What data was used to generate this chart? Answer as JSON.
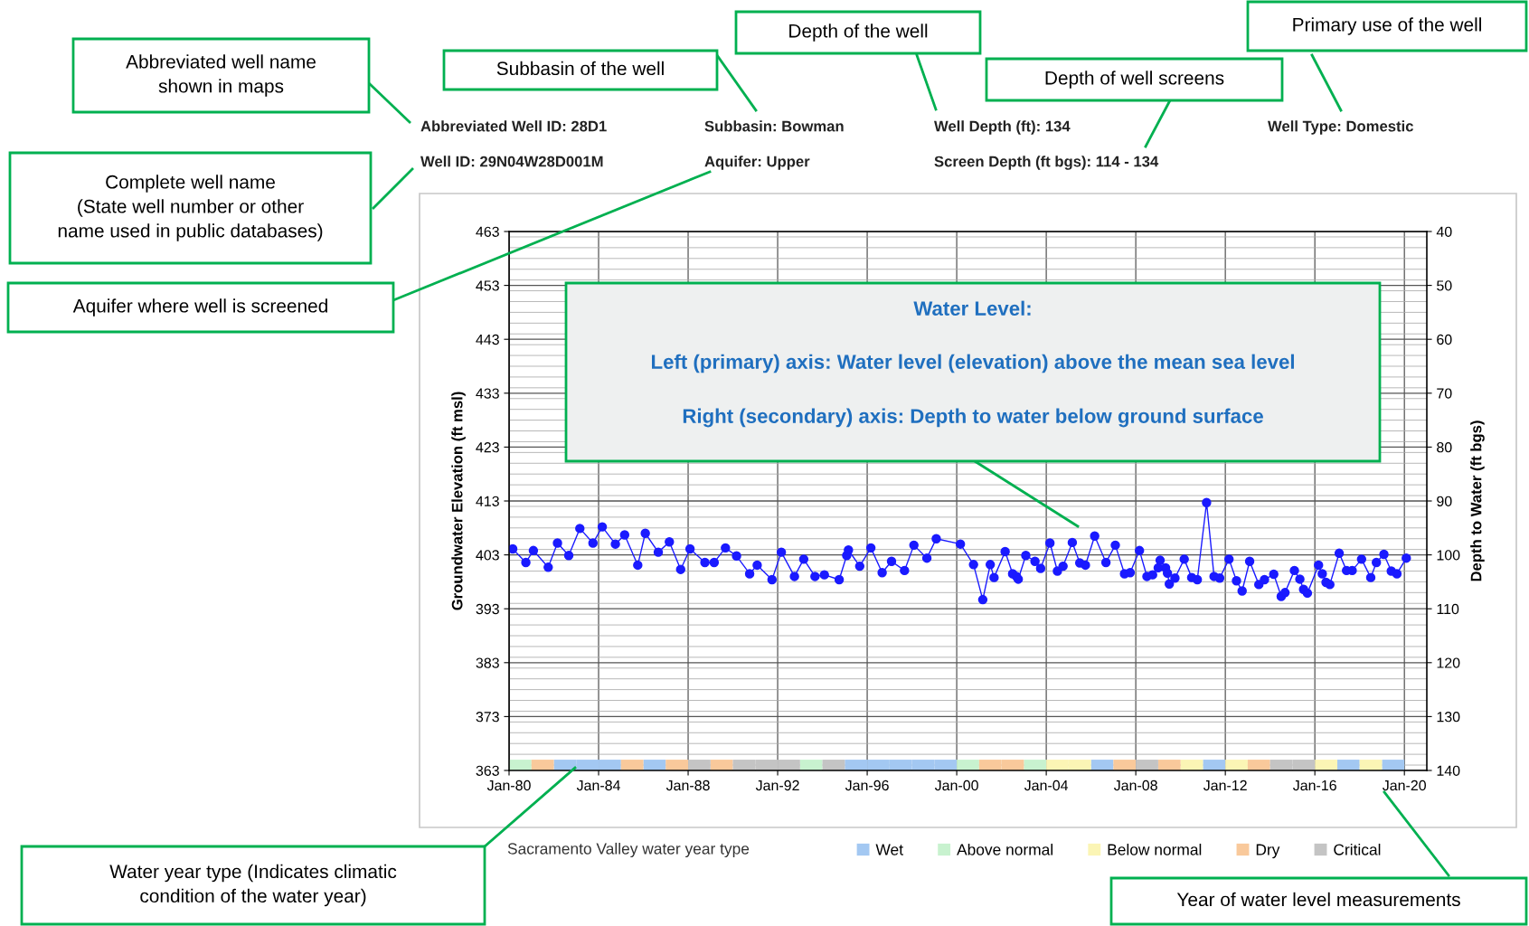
{
  "chart_data": {
    "type": "line",
    "ylabel": "Groundwater Elevation (ft msl)",
    "y2label": "Depth to Water (ft bgs)",
    "legend_title": "Sacramento Valley water year type",
    "xlim": [
      "1980-01",
      "2021-01"
    ],
    "xticks": [
      {
        "value": "1980-01",
        "label": "Jan-80"
      },
      {
        "value": "1984-01",
        "label": "Jan-84"
      },
      {
        "value": "1988-01",
        "label": "Jan-88"
      },
      {
        "value": "1992-01",
        "label": "Jan-92"
      },
      {
        "value": "1996-01",
        "label": "Jan-96"
      },
      {
        "value": "2000-01",
        "label": "Jan-00"
      },
      {
        "value": "2004-01",
        "label": "Jan-04"
      },
      {
        "value": "2008-01",
        "label": "Jan-08"
      },
      {
        "value": "2012-01",
        "label": "Jan-12"
      },
      {
        "value": "2016-01",
        "label": "Jan-16"
      },
      {
        "value": "2020-01",
        "label": "Jan-20"
      }
    ],
    "ylim": [
      363,
      463
    ],
    "yticks": [
      363,
      373,
      383,
      393,
      403,
      413,
      423,
      433,
      443,
      453,
      463
    ],
    "y2lim": [
      140,
      40
    ],
    "y2ticks": [
      40,
      50,
      60,
      70,
      80,
      90,
      100,
      110,
      120,
      130,
      140
    ],
    "grid": true,
    "legend": "bottom",
    "marker": "circle",
    "line_style": "solid",
    "series": [
      {
        "color": "#1a1aff",
        "x": [
          "1980-03",
          "1980-10",
          "1981-02",
          "1981-10",
          "1982-03",
          "1982-09",
          "1983-03",
          "1983-10",
          "1984-03",
          "1984-10",
          "1985-03",
          "1985-10",
          "1986-02",
          "1986-09",
          "1987-03",
          "1987-09",
          "1988-02",
          "1988-10",
          "1989-03",
          "1989-09",
          "1990-03",
          "1990-10",
          "1991-02",
          "1991-10",
          "1992-03",
          "1992-10",
          "1993-03",
          "1993-09",
          "1994-02",
          "1994-10",
          "1995-02",
          "1995-03",
          "1995-09",
          "1996-03",
          "1996-09",
          "1997-02",
          "1997-09",
          "1998-02",
          "1998-09",
          "1999-02",
          "2000-03",
          "2000-10",
          "2001-03",
          "2001-07",
          "2001-09",
          "2002-03",
          "2002-07",
          "2002-09",
          "2002-10",
          "2003-02",
          "2003-07",
          "2003-10",
          "2004-03",
          "2004-07",
          "2004-10",
          "2005-03",
          "2005-07",
          "2005-10",
          "2006-03",
          "2006-09",
          "2007-02",
          "2007-07",
          "2007-10",
          "2008-03",
          "2008-07",
          "2008-10",
          "2009-01",
          "2009-02",
          "2009-05",
          "2009-06",
          "2009-07",
          "2009-10",
          "2010-03",
          "2010-07",
          "2010-10",
          "2011-03",
          "2011-07",
          "2011-10",
          "2012-03",
          "2012-07",
          "2012-10",
          "2013-02",
          "2013-07",
          "2013-10",
          "2014-03",
          "2014-07",
          "2014-09",
          "2015-02",
          "2015-05",
          "2015-07",
          "2015-09",
          "2016-03",
          "2016-05",
          "2016-07",
          "2016-09",
          "2017-02",
          "2017-06",
          "2017-09",
          "2018-02",
          "2018-07",
          "2018-10",
          "2019-02",
          "2019-06",
          "2019-09",
          "2020-02"
        ],
        "values": [
          404.1,
          401.6,
          403.8,
          400.7,
          405.2,
          402.9,
          407.9,
          405.2,
          408.2,
          405.0,
          406.7,
          401.1,
          407.0,
          403.5,
          405.4,
          400.3,
          404.1,
          401.6,
          401.6,
          404.3,
          402.8,
          399.5,
          401.1,
          398.4,
          403.5,
          399.0,
          402.2,
          399.0,
          399.3,
          398.4,
          402.9,
          403.9,
          400.9,
          404.3,
          399.7,
          401.8,
          400.1,
          404.8,
          402.4,
          406.0,
          405.0,
          401.2,
          394.7,
          401.2,
          398.8,
          403.6,
          399.5,
          399.0,
          398.5,
          402.9,
          401.8,
          400.5,
          405.2,
          400.0,
          400.9,
          405.3,
          401.5,
          401.1,
          406.5,
          401.6,
          404.8,
          399.5,
          399.7,
          403.8,
          399.0,
          399.3,
          400.6,
          402.0,
          400.6,
          399.6,
          397.6,
          398.7,
          402.2,
          398.8,
          398.4,
          412.7,
          399.0,
          398.7,
          402.2,
          398.2,
          396.3,
          401.8,
          397.5,
          398.4,
          399.4,
          395.3,
          396.0,
          400.1,
          398.5,
          396.6,
          395.9,
          401.1,
          399.5,
          397.9,
          397.5,
          403.3,
          400.1,
          400.1,
          402.2,
          398.8,
          401.6,
          403.1,
          400.0,
          399.5,
          402.4
        ]
      },
      {
        "type": "bar",
        "name": "Wet",
        "color": "#a3c8f2",
        "x": [
          "1982-07-02",
          "1983-07-02",
          "1984-07-02",
          "1986-07-02",
          "1995-07-02",
          "1996-07-02",
          "1997-07-02",
          "1998-07-02",
          "1999-07-02",
          "2006-07-02",
          "2011-07-02",
          "2017-07-02",
          "2019-07-02"
        ],
        "values": [
          2,
          2,
          2,
          2,
          2,
          2,
          2,
          2,
          2,
          2,
          2,
          2,
          2
        ],
        "base": [
          363,
          363,
          363,
          363,
          363,
          363,
          363,
          363,
          363,
          363,
          363,
          363,
          363
        ]
      },
      {
        "type": "bar",
        "name": "Above normal",
        "color": "#c8f2cf",
        "x": [
          "1980-07-02",
          "1993-07-02",
          "2000-07-02",
          "2003-07-02"
        ],
        "values": [
          2,
          2,
          2,
          2
        ],
        "base": [
          363,
          363,
          363,
          363
        ]
      },
      {
        "type": "bar",
        "name": "Below normal",
        "color": "#fbf5b5",
        "x": [
          "2004-07-02",
          "2005-07-02",
          "2010-07-02",
          "2012-07-02",
          "2016-07-02",
          "2018-07-02"
        ],
        "values": [
          2,
          2,
          2,
          2,
          2,
          2
        ],
        "base": [
          363,
          363,
          363,
          363,
          363,
          363
        ]
      },
      {
        "type": "bar",
        "name": "Dry",
        "color": "#f9c99b",
        "x": [
          "1981-07-02",
          "1985-07-02",
          "1987-07-02",
          "1989-07-02",
          "2001-07-02",
          "2002-07-02",
          "2007-07-02",
          "2009-07-02",
          "2013-07-02"
        ],
        "values": [
          2,
          2,
          2,
          2,
          2,
          2,
          2,
          2,
          2
        ],
        "base": [
          363,
          363,
          363,
          363,
          363,
          363,
          363,
          363,
          363
        ]
      },
      {
        "type": "bar",
        "name": "Critical",
        "color": "#c4c4c4",
        "x": [
          "1988-07-02",
          "1990-07-02",
          "1991-07-02",
          "1992-07-02",
          "1994-07-02",
          "2008-07-02",
          "2014-07-02",
          "2015-07-02"
        ],
        "values": [
          2,
          2,
          2,
          2,
          2,
          2,
          2,
          2
        ],
        "base": [
          363,
          363,
          363,
          363,
          363,
          363,
          363,
          363
        ]
      }
    ],
    "annotations": [
      "Abbreviated Well ID: 28D1",
      "Well ID: 29N04W28D001M",
      "Subbasin: Bowman",
      "Aquifer: Upper",
      "Well Depth (ft): 134",
      "Screen Depth (ft bgs): 114 - 134",
      "Well Type: Domestic",
      "Abbreviated well name\nshown in maps",
      "Complete well name\n(State well number or other\nname used in public databases)",
      "Aquifer where well is screened",
      "Subbasin of the well",
      "Depth of the well",
      "Depth of well screens",
      "Primary use of the well",
      "Water year type (Indicates climatic\ncondition of the water year)",
      "Year of water level measurements",
      "Water Level:",
      "Left (primary) axis: Water level (elevation) above the mean sea level",
      "Right (secondary) axis: Depth to water below ground surface"
    ]
  }
}
